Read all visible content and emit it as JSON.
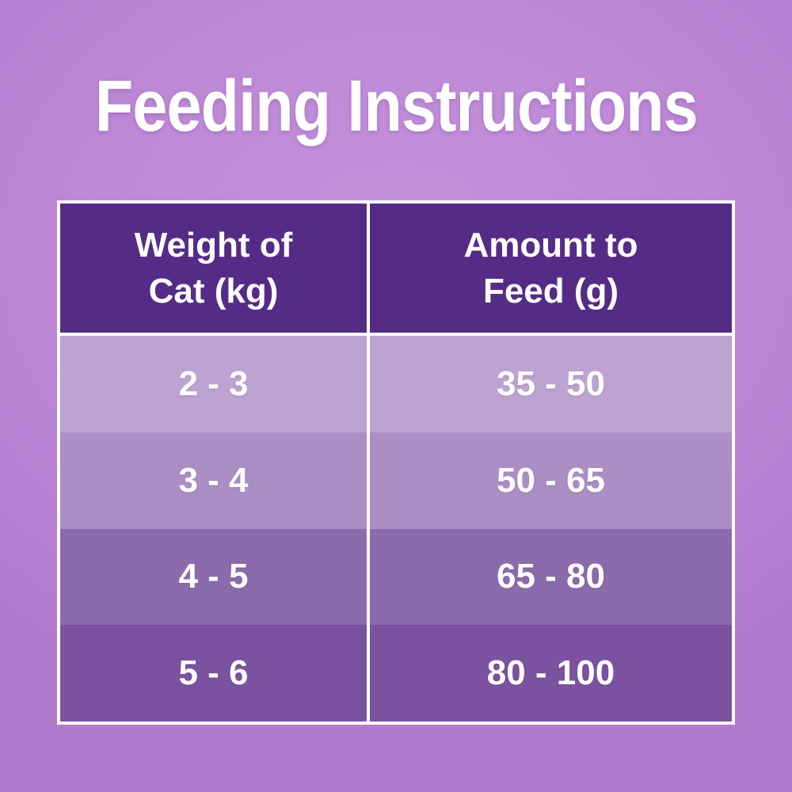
{
  "page": {
    "title": "Feeding Instructions",
    "background_center_color": "#c693dc",
    "background_edge_color": "#b27acd",
    "text_color": "#ffffff"
  },
  "table": {
    "border_color": "#ffffff",
    "header_bg": "#552c85",
    "header": {
      "weight_label": "Weight of\nCat (kg)",
      "amount_label": "Amount to\nFeed (g)"
    },
    "rows": [
      {
        "weight": "2 - 3",
        "amount": "35 - 50",
        "bg": "#bda3d1"
      },
      {
        "weight": "3 - 4",
        "amount": "50 - 65",
        "bg": "#ab8ec4"
      },
      {
        "weight": "4 - 5",
        "amount": "65 - 80",
        "bg": "#8c6bac"
      },
      {
        "weight": "5 - 6",
        "amount": "80 - 100",
        "bg": "#7b529f"
      }
    ]
  },
  "chart_data": {
    "type": "table",
    "title": "Feeding Instructions",
    "columns": [
      "Weight of Cat (kg)",
      "Amount to Feed (g)"
    ],
    "rows": [
      [
        "2 - 3",
        "35 - 50"
      ],
      [
        "3 - 4",
        "50 - 65"
      ],
      [
        "4 - 5",
        "65 - 80"
      ],
      [
        "5 - 6",
        "80 - 100"
      ]
    ],
    "weight_ranges_kg": [
      [
        2,
        3
      ],
      [
        3,
        4
      ],
      [
        4,
        5
      ],
      [
        5,
        6
      ]
    ],
    "feed_amount_ranges_g": [
      [
        35,
        50
      ],
      [
        50,
        65
      ],
      [
        65,
        80
      ],
      [
        80,
        100
      ]
    ]
  }
}
